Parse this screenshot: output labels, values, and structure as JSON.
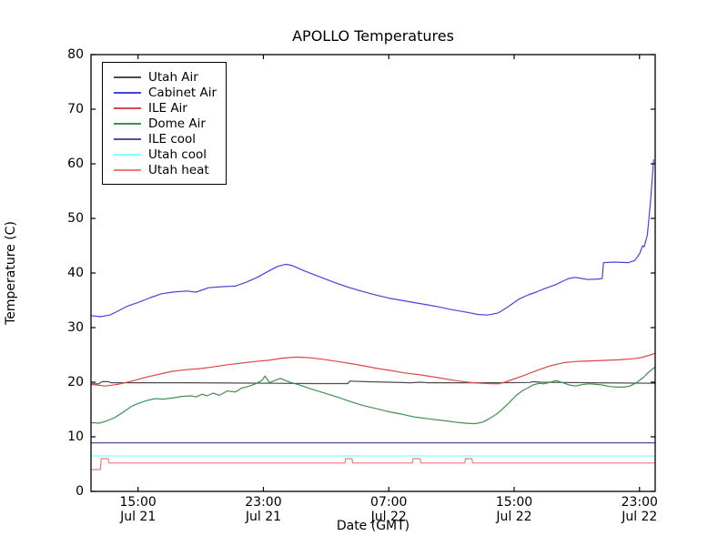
{
  "figure": {
    "background": "#ffffff",
    "axes_color": "#000000",
    "tick_direction": "in"
  },
  "chart_data": {
    "type": "line",
    "title": "APOLLO Temperatures",
    "xlabel": "Date (GMT)",
    "ylabel": "Temperature (C)",
    "xlim": [
      0,
      36
    ],
    "ylim": [
      0,
      80
    ],
    "grid": false,
    "legend_position": "upper left",
    "yticks": [
      0,
      10,
      20,
      30,
      40,
      50,
      60,
      70,
      80
    ],
    "xticks": [
      {
        "x": 3,
        "line1": "15:00",
        "line2": "Jul 21"
      },
      {
        "x": 11,
        "line1": "23:00",
        "line2": "Jul 21"
      },
      {
        "x": 19,
        "line1": "07:00",
        "line2": "Jul 22"
      },
      {
        "x": 27,
        "line1": "15:00",
        "line2": "Jul 22"
      },
      {
        "x": 35,
        "line1": "23:00",
        "line2": "Jul 22"
      }
    ],
    "x_axis_units": "hours, 0 = ~12:00 Jul 21 GMT",
    "series": [
      {
        "name": "Utah Air",
        "color": "#4c4c4c",
        "points": [
          [
            0,
            19.7
          ],
          [
            0.5,
            19.7
          ],
          [
            0.7,
            20.1
          ],
          [
            1.1,
            20.1
          ],
          [
            1.3,
            19.9
          ],
          [
            3,
            19.9
          ],
          [
            6,
            19.9
          ],
          [
            9,
            19.85
          ],
          [
            12,
            19.8
          ],
          [
            14,
            19.75
          ],
          [
            16.4,
            19.75
          ],
          [
            16.5,
            20.2
          ],
          [
            17.5,
            20.1
          ],
          [
            19,
            20.0
          ],
          [
            20.4,
            19.9
          ],
          [
            21,
            20.0
          ],
          [
            21.5,
            19.9
          ],
          [
            24,
            19.9
          ],
          [
            26,
            19.9
          ],
          [
            28,
            19.95
          ],
          [
            28.2,
            20.1
          ],
          [
            28.6,
            20.0
          ],
          [
            30,
            19.95
          ],
          [
            32,
            19.9
          ],
          [
            34,
            19.85
          ],
          [
            36,
            19.8
          ]
        ]
      },
      {
        "name": "Cabinet Air",
        "color": "#4444dd",
        "points": [
          [
            0,
            32.2
          ],
          [
            0.6,
            32.0
          ],
          [
            1.2,
            32.3
          ],
          [
            1.7,
            33.0
          ],
          [
            2.3,
            33.9
          ],
          [
            3,
            34.6
          ],
          [
            3.8,
            35.5
          ],
          [
            4.5,
            36.2
          ],
          [
            5.2,
            36.5
          ],
          [
            6.1,
            36.7
          ],
          [
            6.7,
            36.5
          ],
          [
            7.5,
            37.3
          ],
          [
            8.4,
            37.5
          ],
          [
            9.2,
            37.6
          ],
          [
            9.9,
            38.3
          ],
          [
            10.6,
            39.2
          ],
          [
            11.3,
            40.3
          ],
          [
            11.9,
            41.2
          ],
          [
            12.4,
            41.6
          ],
          [
            12.8,
            41.4
          ],
          [
            13.6,
            40.4
          ],
          [
            14.5,
            39.4
          ],
          [
            15.4,
            38.4
          ],
          [
            16.3,
            37.5
          ],
          [
            17.1,
            36.8
          ],
          [
            18,
            36.1
          ],
          [
            19,
            35.4
          ],
          [
            20,
            34.9
          ],
          [
            21,
            34.4
          ],
          [
            22,
            33.9
          ],
          [
            23,
            33.3
          ],
          [
            24,
            32.8
          ],
          [
            24.7,
            32.4
          ],
          [
            25.3,
            32.3
          ],
          [
            26,
            32.7
          ],
          [
            26.6,
            33.8
          ],
          [
            27.3,
            35.2
          ],
          [
            27.9,
            36.0
          ],
          [
            28.4,
            36.5
          ],
          [
            29,
            37.2
          ],
          [
            29.6,
            37.8
          ],
          [
            30.1,
            38.5
          ],
          [
            30.5,
            39.0
          ],
          [
            30.9,
            39.2
          ],
          [
            31.7,
            38.8
          ],
          [
            32.4,
            38.9
          ],
          [
            32.62,
            39.0
          ],
          [
            32.7,
            41.9
          ],
          [
            33.4,
            42.0
          ],
          [
            34.3,
            41.9
          ],
          [
            34.7,
            42.3
          ],
          [
            35,
            43.5
          ],
          [
            35.2,
            45.0
          ],
          [
            35.3,
            44.8
          ],
          [
            35.5,
            47.0
          ],
          [
            35.7,
            53.0
          ],
          [
            35.8,
            57.0
          ],
          [
            35.9,
            60.8
          ]
        ]
      },
      {
        "name": "ILE Air",
        "color": "#e04848",
        "points": [
          [
            0,
            19.6
          ],
          [
            0.9,
            19.3
          ],
          [
            1.7,
            19.6
          ],
          [
            2.6,
            20.2
          ],
          [
            3.5,
            20.9
          ],
          [
            4.4,
            21.5
          ],
          [
            5.2,
            22.0
          ],
          [
            6.1,
            22.3
          ],
          [
            7,
            22.5
          ],
          [
            7.8,
            22.8
          ],
          [
            8.7,
            23.2
          ],
          [
            9.6,
            23.5
          ],
          [
            10.5,
            23.8
          ],
          [
            11.3,
            24.0
          ],
          [
            12.2,
            24.4
          ],
          [
            13.1,
            24.6
          ],
          [
            13.9,
            24.5
          ],
          [
            14.8,
            24.2
          ],
          [
            15.7,
            23.8
          ],
          [
            16.6,
            23.4
          ],
          [
            17.4,
            23.0
          ],
          [
            18.3,
            22.5
          ],
          [
            19.2,
            22.1
          ],
          [
            20,
            21.7
          ],
          [
            20.9,
            21.4
          ],
          [
            21.8,
            21.0
          ],
          [
            22.6,
            20.6
          ],
          [
            23.5,
            20.2
          ],
          [
            24.4,
            19.9
          ],
          [
            25.3,
            19.75
          ],
          [
            26,
            19.7
          ],
          [
            26.4,
            20.0
          ],
          [
            27.6,
            21.2
          ],
          [
            28.5,
            22.2
          ],
          [
            29.3,
            23.0
          ],
          [
            30.2,
            23.6
          ],
          [
            31,
            23.8
          ],
          [
            31.9,
            23.9
          ],
          [
            32.8,
            24.0
          ],
          [
            33.7,
            24.1
          ],
          [
            34.6,
            24.3
          ],
          [
            35.1,
            24.5
          ],
          [
            35.7,
            25.0
          ],
          [
            36,
            25.3
          ]
        ]
      },
      {
        "name": "Dome Air",
        "color": "#3f9150",
        "points": [
          [
            0,
            12.6
          ],
          [
            0.5,
            12.5
          ],
          [
            0.9,
            12.8
          ],
          [
            1.5,
            13.5
          ],
          [
            2,
            14.4
          ],
          [
            2.6,
            15.6
          ],
          [
            3,
            16.1
          ],
          [
            3.5,
            16.6
          ],
          [
            4.1,
            17.0
          ],
          [
            4.6,
            16.9
          ],
          [
            5.2,
            17.1
          ],
          [
            5.8,
            17.4
          ],
          [
            6.4,
            17.5
          ],
          [
            6.7,
            17.3
          ],
          [
            7.1,
            17.8
          ],
          [
            7.4,
            17.5
          ],
          [
            7.8,
            18.0
          ],
          [
            8.2,
            17.6
          ],
          [
            8.7,
            18.4
          ],
          [
            9.2,
            18.2
          ],
          [
            9.6,
            18.9
          ],
          [
            10,
            19.2
          ],
          [
            10.4,
            19.6
          ],
          [
            10.9,
            20.3
          ],
          [
            11.1,
            21.1
          ],
          [
            11.4,
            19.9
          ],
          [
            11.7,
            20.3
          ],
          [
            12.1,
            20.7
          ],
          [
            12.4,
            20.3
          ],
          [
            12.8,
            19.9
          ],
          [
            13.4,
            19.4
          ],
          [
            14,
            18.8
          ],
          [
            14.8,
            18.1
          ],
          [
            15.7,
            17.3
          ],
          [
            16.6,
            16.4
          ],
          [
            17.4,
            15.7
          ],
          [
            18.3,
            15.1
          ],
          [
            19,
            14.6
          ],
          [
            19.9,
            14.1
          ],
          [
            20.7,
            13.6
          ],
          [
            21.5,
            13.3
          ],
          [
            22.4,
            13.0
          ],
          [
            23.2,
            12.7
          ],
          [
            23.9,
            12.5
          ],
          [
            24.5,
            12.4
          ],
          [
            25,
            12.7
          ],
          [
            25.4,
            13.3
          ],
          [
            25.9,
            14.2
          ],
          [
            26.3,
            15.2
          ],
          [
            26.7,
            16.3
          ],
          [
            27.1,
            17.5
          ],
          [
            27.5,
            18.4
          ],
          [
            27.9,
            19.0
          ],
          [
            28.2,
            19.5
          ],
          [
            28.6,
            19.8
          ],
          [
            28.9,
            19.7
          ],
          [
            29.3,
            20.0
          ],
          [
            29.7,
            20.3
          ],
          [
            30.1,
            19.9
          ],
          [
            30.5,
            19.5
          ],
          [
            30.9,
            19.3
          ],
          [
            31.4,
            19.6
          ],
          [
            31.8,
            19.7
          ],
          [
            32.2,
            19.6
          ],
          [
            32.6,
            19.5
          ],
          [
            33.1,
            19.2
          ],
          [
            33.6,
            19.1
          ],
          [
            34,
            19.1
          ],
          [
            34.4,
            19.3
          ],
          [
            34.8,
            19.9
          ],
          [
            35.3,
            21.0
          ],
          [
            35.6,
            21.9
          ],
          [
            36,
            22.8
          ]
        ]
      },
      {
        "name": "ILE cool",
        "color": "#50509a",
        "points": [
          [
            0,
            8.9
          ],
          [
            36,
            8.9
          ]
        ]
      },
      {
        "name": "Utah cool",
        "color": "#85ffff",
        "points": [
          [
            0,
            6.5
          ],
          [
            36,
            6.5
          ]
        ]
      },
      {
        "name": "Utah heat",
        "color": "#f27a7a",
        "points": [
          [
            0,
            4.0
          ],
          [
            0.6,
            4.0
          ],
          [
            0.65,
            6.0
          ],
          [
            1.1,
            6.0
          ],
          [
            1.15,
            5.2
          ],
          [
            16.2,
            5.2
          ],
          [
            16.25,
            6.0
          ],
          [
            16.65,
            6.0
          ],
          [
            16.7,
            5.2
          ],
          [
            20.5,
            5.2
          ],
          [
            20.55,
            6.0
          ],
          [
            21.0,
            6.0
          ],
          [
            21.05,
            5.2
          ],
          [
            23.85,
            5.2
          ],
          [
            23.9,
            6.0
          ],
          [
            24.3,
            6.0
          ],
          [
            24.35,
            5.2
          ],
          [
            36,
            5.2
          ]
        ]
      }
    ]
  }
}
